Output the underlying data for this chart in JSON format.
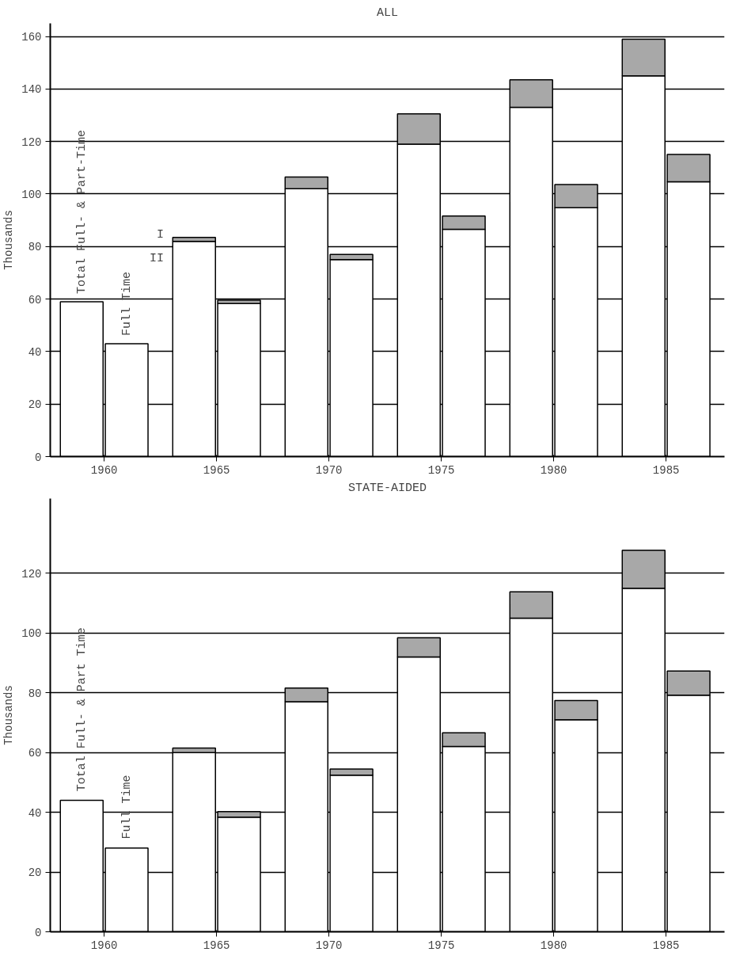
{
  "chart_data": [
    {
      "type": "bar",
      "stacked": true,
      "title": "ALL",
      "ylabel": "Thousands",
      "xlim": [
        1957.6,
        1987.6
      ],
      "xticks": [
        1960,
        1965,
        1970,
        1975,
        1980,
        1985
      ],
      "ylim": [
        0,
        165
      ],
      "yticks": [
        0,
        20,
        40,
        60,
        80,
        100,
        120,
        140,
        160
      ],
      "grid": "y",
      "x": [
        1959,
        1961,
        1964,
        1966,
        1969,
        1971,
        1974,
        1976,
        1979,
        1981,
        1984,
        1986
      ],
      "annotations": [
        "Total Full- & Part-Time",
        "Full Time",
        "I",
        "II"
      ],
      "series": [
        {
          "color": "#ffffff",
          "values": [
            59,
            43,
            82,
            58.3,
            102,
            75,
            119,
            86.6,
            133,
            94.8,
            145,
            104.7
          ]
        },
        {
          "color": "#a8a8a8",
          "values": [
            null,
            null,
            1.5,
            1.3,
            4.5,
            2,
            11.5,
            5,
            10.5,
            8.8,
            14,
            10.4
          ]
        }
      ]
    },
    {
      "type": "bar",
      "stacked": true,
      "title": "STATE-AIDED",
      "ylabel": "Thousands",
      "xlim": [
        1957.6,
        1987.6
      ],
      "xticks": [
        1960,
        1965,
        1970,
        1975,
        1980,
        1985
      ],
      "ylim": [
        0,
        145
      ],
      "yticks": [
        0,
        20,
        40,
        60,
        80,
        100,
        120
      ],
      "grid": "y",
      "x": [
        1959,
        1961,
        1964,
        1966,
        1969,
        1971,
        1974,
        1976,
        1979,
        1981,
        1984,
        1986
      ],
      "annotations": [
        "Total Full- & Part Time",
        "Full Time"
      ],
      "series": [
        {
          "color": "#ffffff",
          "values": [
            44,
            28,
            60,
            38.4,
            77,
            52.4,
            92,
            62,
            105,
            71,
            115,
            79.2
          ]
        },
        {
          "color": "#a8a8a8",
          "values": [
            null,
            null,
            1.5,
            1.8,
            4.6,
            2.1,
            6.4,
            4.6,
            8.8,
            6.4,
            12.7,
            8.1
          ]
        }
      ]
    }
  ]
}
